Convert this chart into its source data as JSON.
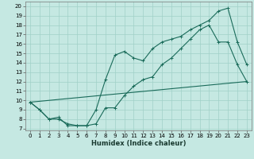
{
  "xlabel": "Humidex (Indice chaleur)",
  "bg_color": "#c5e8e2",
  "grid_color": "#a0d0c8",
  "line_color": "#1a6b5a",
  "xlim": [
    -0.5,
    23.5
  ],
  "ylim": [
    6.8,
    20.5
  ],
  "yticks": [
    7,
    8,
    9,
    10,
    11,
    12,
    13,
    14,
    15,
    16,
    17,
    18,
    19,
    20
  ],
  "xticks": [
    0,
    1,
    2,
    3,
    4,
    5,
    6,
    7,
    8,
    9,
    10,
    11,
    12,
    13,
    14,
    15,
    16,
    17,
    18,
    19,
    20,
    21,
    22,
    23
  ],
  "line1_x": [
    0,
    1,
    2,
    3,
    4,
    5,
    6,
    7,
    8,
    9,
    10,
    11,
    12,
    13,
    14,
    15,
    16,
    17,
    18,
    19,
    20,
    21,
    22,
    23
  ],
  "line1_y": [
    9.8,
    9.0,
    8.0,
    8.2,
    7.3,
    7.3,
    7.3,
    7.5,
    9.2,
    9.2,
    10.5,
    11.5,
    12.2,
    12.5,
    13.8,
    14.5,
    15.5,
    16.5,
    17.5,
    18.0,
    16.2,
    16.2,
    13.8,
    12.0
  ],
  "line2_x": [
    0,
    1,
    2,
    3,
    4,
    5,
    6,
    7,
    8,
    9,
    10,
    11,
    12,
    13,
    14,
    15,
    16,
    17,
    18,
    19,
    20,
    21,
    22,
    23
  ],
  "line2_y": [
    9.8,
    9.0,
    8.0,
    8.0,
    7.5,
    7.3,
    7.3,
    9.0,
    12.2,
    14.8,
    15.2,
    14.5,
    14.2,
    15.5,
    16.2,
    16.5,
    16.8,
    17.5,
    18.0,
    18.5,
    19.5,
    19.8,
    16.2,
    13.8
  ],
  "line3_x": [
    0,
    23
  ],
  "line3_y": [
    9.8,
    12.0
  ],
  "xlabel_fontsize": 6,
  "tick_fontsize": 5,
  "linewidth": 0.8,
  "markersize": 2.5,
  "markeredgewidth": 0.7
}
